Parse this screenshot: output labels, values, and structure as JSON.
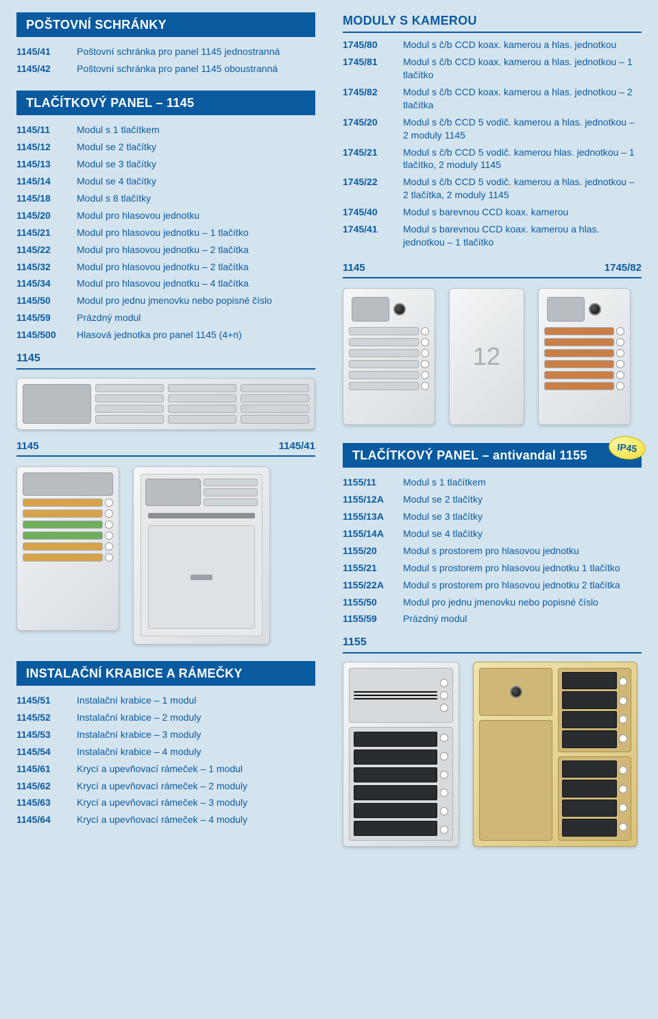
{
  "page_bg": "#d4e4ef",
  "brand_color": "#0a5aa0",
  "col_left": {
    "postovni": {
      "title": "POŠTOVNÍ SCHRÁNKY",
      "items": [
        {
          "code": "1145/41",
          "desc": "Poštovní schránka pro panel 1145 jednostranná"
        },
        {
          "code": "1145/42",
          "desc": "Poštovní schránka pro panel 1145 oboustranná"
        }
      ]
    },
    "tlacitkovy": {
      "title": "TLAČÍTKOVÝ PANEL – 1145",
      "items": [
        {
          "code": "1145/11",
          "desc": "Modul s 1 tlačítkem"
        },
        {
          "code": "1145/12",
          "desc": "Modul se 2 tlačítky"
        },
        {
          "code": "1145/13",
          "desc": "Modul se 3 tlačítky"
        },
        {
          "code": "1145/14",
          "desc": "Modul se 4 tlačítky"
        },
        {
          "code": "1145/18",
          "desc": "Modul s 8 tlačítky"
        },
        {
          "code": "1145/20",
          "desc": "Modul pro hlasovou jednotku"
        },
        {
          "code": "1145/21",
          "desc": "Modul pro hlasovou jednotku – 1 tlačítko"
        },
        {
          "code": "1145/22",
          "desc": "Modul pro hlasovou jednotku – 2 tlačítka"
        },
        {
          "code": "1145/32",
          "desc": "Modul pro hlasovou jednotku – 2 tlačítka"
        },
        {
          "code": "1145/34",
          "desc": "Modul pro hlasovou jednotku – 4 tlačítka"
        },
        {
          "code": "1145/50",
          "desc": "Modul pro jednu jmenovku nebo popisné číslo"
        },
        {
          "code": "1145/59",
          "desc": "Prázdný modul"
        },
        {
          "code": "1145/500",
          "desc": "Hlasová jednotka pro panel 1145 (4+n)"
        }
      ]
    },
    "img1_label": "1145",
    "img2_left": "1145",
    "img2_right": "1145/41",
    "krabice": {
      "title": "INSTALAČNÍ KRABICE A RÁMEČKY",
      "items": [
        {
          "code": "1145/51",
          "desc": "Instalační krabice – 1 modul"
        },
        {
          "code": "1145/52",
          "desc": "Instalační krabice – 2 moduly"
        },
        {
          "code": "1145/53",
          "desc": "Instalační krabice – 3 moduly"
        },
        {
          "code": "1145/54",
          "desc": "Instalační krabice – 4 moduly"
        },
        {
          "code": "1145/61",
          "desc": "Krycí a upevňovací rámeček – 1 modul"
        },
        {
          "code": "1145/62",
          "desc": "Krycí a upevňovací rámeček – 2 moduly"
        },
        {
          "code": "1145/63",
          "desc": "Krycí a upevňovací rámeček – 3 moduly"
        },
        {
          "code": "1145/64",
          "desc": "Krycí a upevňovací rámeček – 4 moduly"
        }
      ]
    }
  },
  "col_right": {
    "moduly": {
      "title": "MODULY S KAMEROU",
      "items": [
        {
          "code": "1745/80",
          "desc": "Modul s č/b CCD koax. kamerou a hlas. jednotkou"
        },
        {
          "code": "1745/81",
          "desc": "Modul s č/b CCD koax. kamerou a hlas. jednotkou – 1 tlačítko"
        },
        {
          "code": "1745/82",
          "desc": "Modul s č/b CCD koax. kamerou a hlas. jednotkou – 2 tlačítka"
        },
        {
          "code": "1745/20",
          "desc": "Modul s č/b CCD 5 vodič. kamerou a hlas. jednotkou – 2 moduly 1145"
        },
        {
          "code": "1745/21",
          "desc": "Modul s č/b CCD 5 vodič. kamerou hlas. jednotkou – 1 tlačítko, 2 moduly 1145"
        },
        {
          "code": "1745/22",
          "desc": "Modul s č/b CCD 5 vodič. kamerou a hlas. jednotkou – 2 tlačítka, 2 moduly 1145"
        },
        {
          "code": "1745/40",
          "desc": "Modul s barevnou CCD koax. kamerou"
        },
        {
          "code": "1745/41",
          "desc": "Modul s barevnou CCD koax. kamerou a hlas. jednotkou – 1 tlačítko"
        }
      ]
    },
    "img1_left": "1145",
    "img1_right": "1745/82",
    "antivandal": {
      "title": "TLAČÍTKOVÝ PANEL – antivandal 1155",
      "badge": "IP45",
      "items": [
        {
          "code": "1155/11",
          "desc": "Modul s 1 tlačítkem"
        },
        {
          "code": "1155/12A",
          "desc": "Modul se 2 tlačítky"
        },
        {
          "code": "1155/13A",
          "desc": "Modul se 3 tlačítky"
        },
        {
          "code": "1155/14A",
          "desc": "Modul se 4 tlačítky"
        },
        {
          "code": "1155/20",
          "desc": "Modul s prostorem pro hlasovou jednotku"
        },
        {
          "code": "1155/21",
          "desc": "Modul s prostorem pro hlasovou jednotku 1 tlačítko"
        },
        {
          "code": "1155/22A",
          "desc": "Modul s prostorem pro hlasovou jednotku 2 tlačítka"
        },
        {
          "code": "1155/50",
          "desc": "Modul pro jednu jmenovku nebo popisné číslo"
        },
        {
          "code": "1155/59",
          "desc": "Prázdný modul"
        }
      ]
    },
    "img2_label": "1155"
  }
}
